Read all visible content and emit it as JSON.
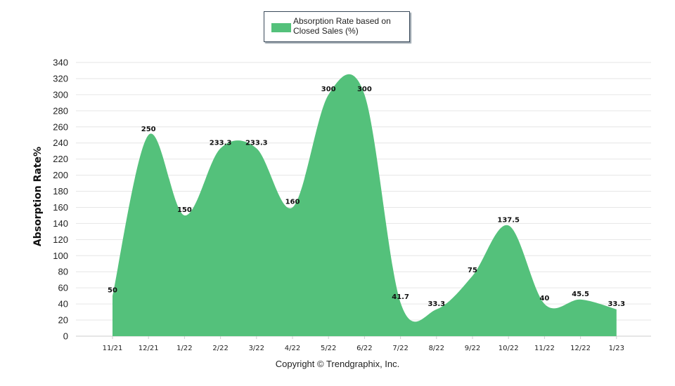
{
  "chart_data": {
    "type": "area",
    "title": "",
    "legend": {
      "label": "Absorption Rate based on Closed Sales (%)",
      "position": "top-center"
    },
    "xlabel": "",
    "ylabel": "Absorption Rate%",
    "categories": [
      "11/21",
      "12/21",
      "1/22",
      "2/22",
      "3/22",
      "4/22",
      "5/22",
      "6/22",
      "7/22",
      "8/22",
      "9/22",
      "10/22",
      "11/22",
      "12/22",
      "1/23"
    ],
    "series": [
      {
        "name": "Absorption Rate based on Closed Sales (%)",
        "values": [
          50,
          250,
          150,
          233.3,
          233.3,
          160,
          300,
          300,
          41.7,
          33.3,
          75,
          137.5,
          40,
          45.5,
          33.3
        ]
      }
    ],
    "ylim": [
      0,
      340
    ],
    "yticks": [
      0,
      20,
      40,
      60,
      80,
      100,
      120,
      140,
      160,
      180,
      200,
      220,
      240,
      260,
      280,
      300,
      320,
      340
    ],
    "grid": true,
    "colors": {
      "fill": "#54c17b",
      "grid": "#e6e6e6",
      "axis": "#cccccc"
    }
  },
  "footer": {
    "copyright": "Copyright © Trendgraphix, Inc."
  }
}
